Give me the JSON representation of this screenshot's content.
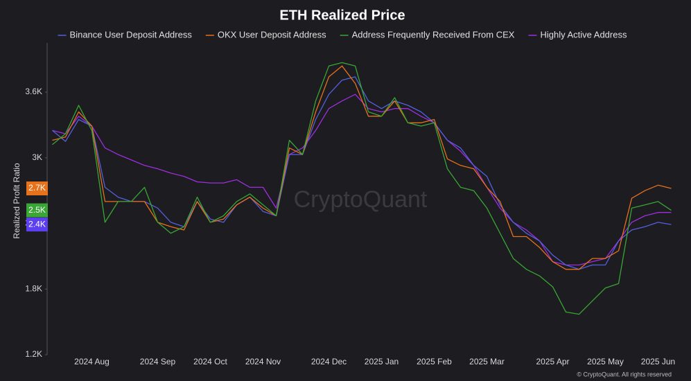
{
  "chart_data": {
    "type": "line",
    "title": "ETH Realized Price",
    "y_label": "Realized Profit Ratio",
    "watermark": "CryptoQuant",
    "footer": "© CryptoQuant. All rights reserved",
    "categories": [
      null,
      null,
      null,
      "2024 Aug",
      null,
      null,
      null,
      null,
      "2024 Sep",
      null,
      null,
      null,
      "2024 Oct",
      null,
      null,
      null,
      "2024 Nov",
      null,
      null,
      null,
      null,
      "2024 Dec",
      null,
      null,
      null,
      "2025 Jan",
      null,
      null,
      null,
      "2025 Feb",
      null,
      null,
      null,
      "2025 Mar",
      null,
      null,
      null,
      null,
      "2025 Apr",
      null,
      null,
      null,
      "2025 May",
      null,
      null,
      null,
      "2025 Jun",
      null
    ],
    "ylim": [
      1200,
      4050
    ],
    "yticks": [
      {
        "value": 1200,
        "label": "1.2K"
      },
      {
        "value": 1800,
        "label": "1.8K"
      },
      {
        "value": 2400,
        "label": "2.4K"
      },
      {
        "value": 3000,
        "label": "3K"
      },
      {
        "value": 3600,
        "label": "3.6K"
      }
    ],
    "grid": false,
    "legend": "top",
    "series": [
      {
        "name": "Binance User Deposit Address",
        "color": "#5560e0",
        "values": [
          3250,
          3150,
          3350,
          3290,
          2730,
          2640,
          2600,
          2600,
          2540,
          2410,
          2370,
          2600,
          2440,
          2410,
          2570,
          2640,
          2510,
          2470,
          3030,
          3030,
          3350,
          3580,
          3710,
          3740,
          3520,
          3450,
          3520,
          3480,
          3420,
          3320,
          3160,
          3090,
          2930,
          2830,
          2570,
          2410,
          2310,
          2240,
          2110,
          2020,
          1980,
          2020,
          2020,
          2240,
          2340,
          2370,
          2410,
          2390
        ],
        "value_labels": [
          null,
          null,
          null,
          null,
          null,
          null,
          null,
          null,
          null,
          null,
          null,
          null,
          null,
          null,
          null,
          null,
          null,
          null,
          null,
          null,
          null,
          null,
          null,
          null,
          null,
          null,
          null,
          null,
          null,
          null,
          null,
          null,
          null,
          null,
          null,
          null,
          null,
          null,
          null,
          null,
          null,
          null,
          null,
          null,
          null,
          null,
          null,
          "2.4K"
        ],
        "badge_color": "#5b3ff0"
      },
      {
        "name": "OKX User Deposit Address",
        "color": "#e8711c",
        "values": [
          3160,
          3190,
          3420,
          3290,
          2600,
          2600,
          2600,
          2600,
          2410,
          2370,
          2340,
          2600,
          2410,
          2440,
          2570,
          2640,
          2540,
          2470,
          3090,
          3030,
          3420,
          3740,
          3840,
          3680,
          3380,
          3380,
          3520,
          3320,
          3320,
          3350,
          2990,
          2930,
          2900,
          2730,
          2600,
          2280,
          2280,
          2180,
          2050,
          1980,
          1980,
          2080,
          2080,
          2150,
          2630,
          2700,
          2750,
          2720
        ],
        "value_labels": [
          null,
          null,
          null,
          null,
          null,
          null,
          null,
          null,
          null,
          null,
          null,
          null,
          null,
          null,
          null,
          null,
          null,
          null,
          null,
          null,
          null,
          null,
          null,
          null,
          null,
          null,
          null,
          null,
          null,
          null,
          null,
          null,
          null,
          null,
          null,
          null,
          null,
          null,
          null,
          null,
          null,
          null,
          null,
          null,
          null,
          null,
          null,
          "2.7K"
        ],
        "badge_color": "#e8711c"
      },
      {
        "name": "Address Frequently Received From CEX",
        "color": "#3aa635",
        "values": [
          3120,
          3220,
          3480,
          3250,
          2410,
          2600,
          2600,
          2730,
          2410,
          2310,
          2370,
          2640,
          2410,
          2470,
          2600,
          2670,
          2570,
          2470,
          3160,
          3030,
          3520,
          3840,
          3870,
          3840,
          3420,
          3380,
          3550,
          3320,
          3290,
          3320,
          2900,
          2730,
          2700,
          2540,
          2310,
          2080,
          1980,
          1920,
          1820,
          1590,
          1570,
          1690,
          1810,
          1850,
          2540,
          2570,
          2600,
          2520
        ],
        "value_labels": [
          null,
          null,
          null,
          null,
          null,
          null,
          null,
          null,
          null,
          null,
          null,
          null,
          null,
          null,
          null,
          null,
          null,
          null,
          null,
          null,
          null,
          null,
          null,
          null,
          null,
          null,
          null,
          null,
          null,
          null,
          null,
          null,
          null,
          null,
          null,
          null,
          null,
          null,
          null,
          null,
          null,
          null,
          null,
          null,
          null,
          null,
          null,
          "2.5K"
        ],
        "badge_color": "#3aa635"
      },
      {
        "name": "Highly Active Address",
        "color": "#a02ee0",
        "values": [
          3250,
          3220,
          3380,
          3290,
          3090,
          3030,
          2980,
          2930,
          2900,
          2860,
          2830,
          2780,
          2770,
          2770,
          2800,
          2730,
          2730,
          2540,
          3030,
          3090,
          3250,
          3450,
          3520,
          3580,
          3450,
          3420,
          3450,
          3450,
          3380,
          3320,
          3160,
          3060,
          2930,
          2730,
          2540,
          2410,
          2340,
          2240,
          2050,
          2020,
          2020,
          2050,
          2080,
          2240,
          2410,
          2470,
          2500,
          2500
        ]
      }
    ]
  }
}
